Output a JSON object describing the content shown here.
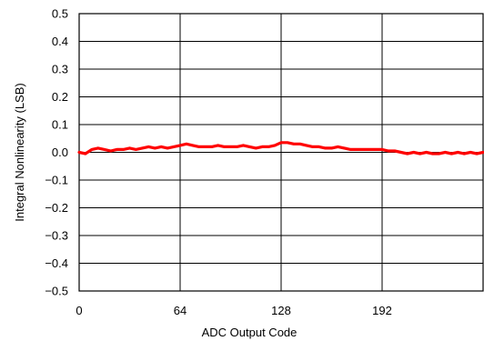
{
  "chart_data": {
    "type": "line",
    "title": "",
    "xlabel": "ADC Output Code",
    "ylabel": "Integral Nonlinearity (LSB)",
    "xlim": [
      0,
      256
    ],
    "ylim": [
      -0.5,
      0.5
    ],
    "x_ticks": [
      0,
      64,
      128,
      192
    ],
    "x_tick_labels": [
      "0",
      "64",
      "128",
      "192"
    ],
    "y_ticks": [
      0.5,
      0.4,
      0.3,
      0.2,
      0.1,
      0.0,
      -0.1,
      -0.2,
      -0.3,
      -0.4,
      -0.5
    ],
    "y_tick_labels": [
      "0.5",
      "0.4",
      "0.3",
      "0.2",
      "0.1",
      "0.0",
      "−0.1",
      "−0.2",
      "−0.3",
      "−0.4",
      "−0.5"
    ],
    "grid": true,
    "legend": "none",
    "series": [
      {
        "color": "#ff0000",
        "x": [
          0,
          4,
          8,
          12,
          16,
          20,
          24,
          28,
          32,
          36,
          40,
          44,
          48,
          52,
          56,
          60,
          64,
          68,
          72,
          76,
          80,
          84,
          88,
          92,
          96,
          100,
          104,
          108,
          112,
          116,
          120,
          124,
          128,
          132,
          136,
          140,
          144,
          148,
          152,
          156,
          160,
          164,
          168,
          172,
          176,
          180,
          184,
          188,
          192,
          196,
          200,
          204,
          208,
          212,
          216,
          220,
          224,
          228,
          232,
          236,
          240,
          244,
          248,
          252,
          256
        ],
        "values": [
          0.0,
          -0.005,
          0.01,
          0.015,
          0.01,
          0.005,
          0.01,
          0.01,
          0.015,
          0.01,
          0.015,
          0.02,
          0.015,
          0.02,
          0.015,
          0.02,
          0.025,
          0.03,
          0.025,
          0.02,
          0.02,
          0.02,
          0.025,
          0.02,
          0.02,
          0.02,
          0.025,
          0.02,
          0.015,
          0.02,
          0.02,
          0.025,
          0.035,
          0.035,
          0.03,
          0.03,
          0.025,
          0.02,
          0.02,
          0.015,
          0.015,
          0.02,
          0.015,
          0.01,
          0.01,
          0.01,
          0.01,
          0.01,
          0.01,
          0.005,
          0.005,
          0.0,
          -0.005,
          0.0,
          -0.005,
          0.0,
          -0.005,
          -0.005,
          0.0,
          -0.005,
          0.0,
          -0.005,
          0.0,
          -0.005,
          0.0
        ]
      }
    ]
  }
}
